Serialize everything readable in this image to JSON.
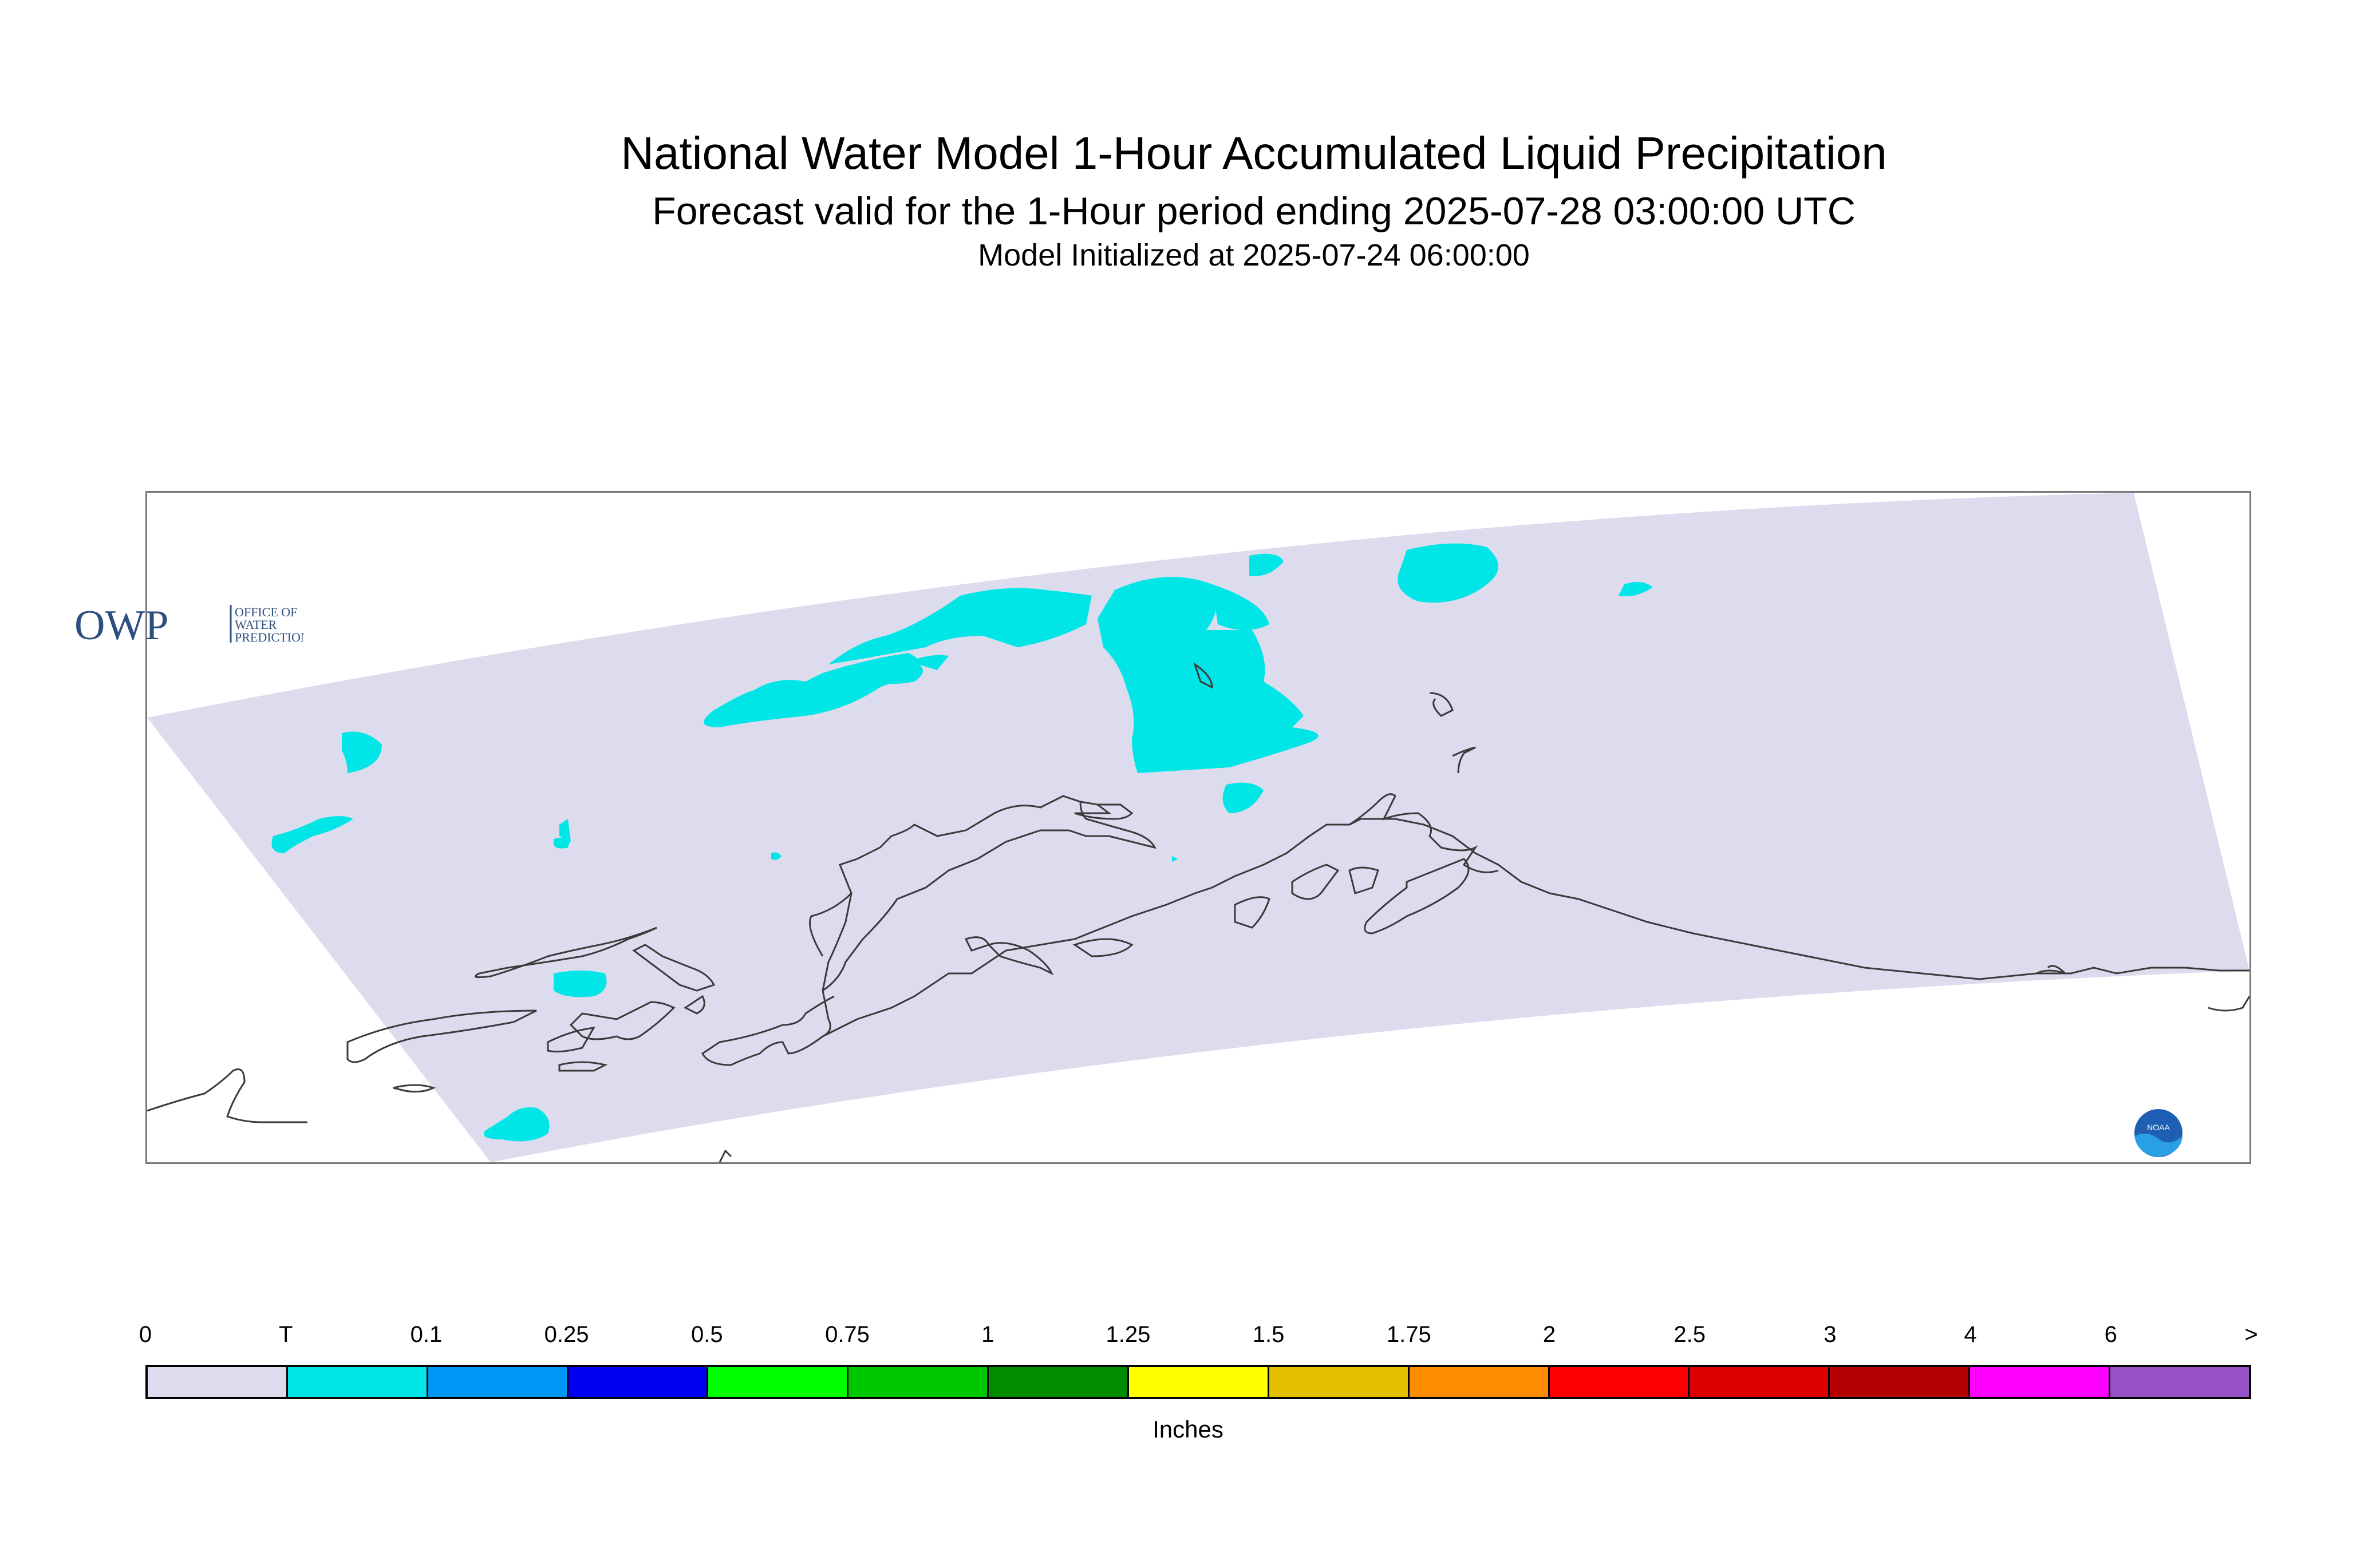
{
  "title": {
    "line1": "National Water Model 1-Hour Accumulated Liquid Precipitation",
    "line2": "Forecast valid for the 1-Hour period ending 2025-07-28 03:00:00 UTC",
    "line3": "Model Initialized at 2025-07-24 06:00:00"
  },
  "colors": {
    "domain_fill": "#dcdcee",
    "precip_trace": "#00e6e6",
    "coastline": "#3a3a3a"
  },
  "logos": {
    "owp": {
      "big": "OWP",
      "small1": "OFFICE OF",
      "small2": "WATER",
      "small3": "PREDICTION"
    },
    "noaa": {
      "text": "NOAA"
    }
  },
  "colorbar": {
    "units": "Inches",
    "labels": [
      "0",
      "T",
      "0.1",
      "0.25",
      "0.5",
      "0.75",
      "1",
      "1.25",
      "1.5",
      "1.75",
      "2",
      "2.5",
      "3",
      "4",
      "6",
      ">"
    ],
    "colors": [
      "#dcdcee",
      "#00e6e6",
      "#0096f5",
      "#0000f0",
      "#00ff00",
      "#00c800",
      "#008c00",
      "#ffff00",
      "#e6be00",
      "#ff8c00",
      "#ff0000",
      "#dc0000",
      "#b40000",
      "#ff00ff",
      "#9650c8"
    ]
  }
}
